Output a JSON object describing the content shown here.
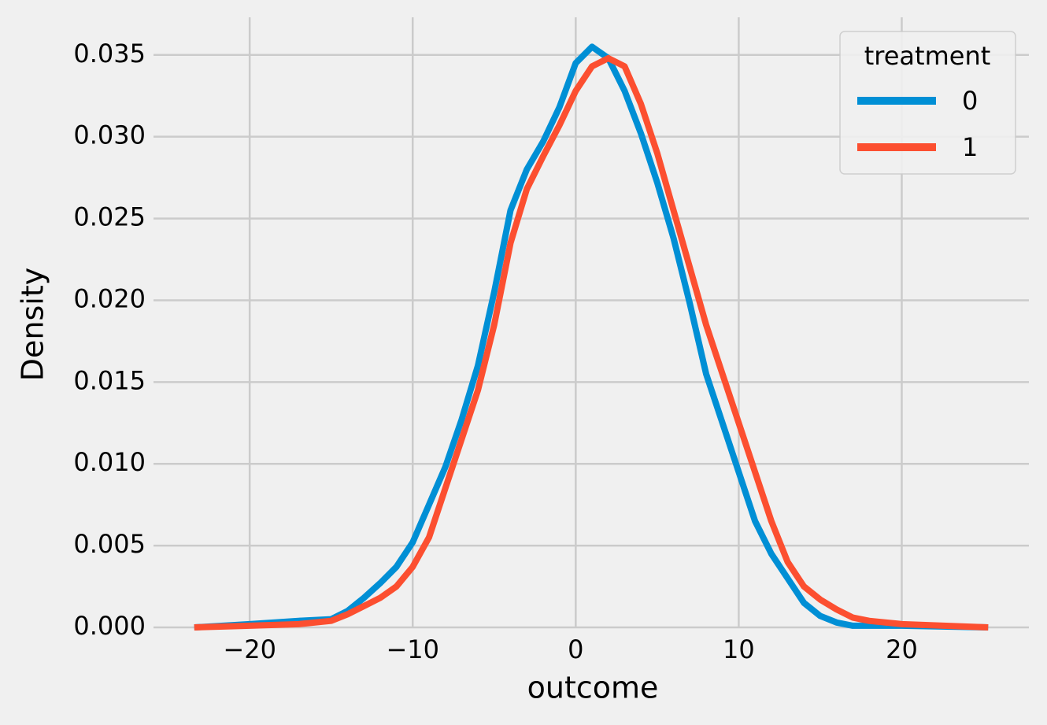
{
  "chart_data": {
    "type": "line",
    "xlabel": "outcome",
    "ylabel": "Density",
    "x": [
      -23.4,
      -20,
      -17,
      -15,
      -14,
      -13,
      -12,
      -11,
      -10,
      -9,
      -8,
      -7,
      -6,
      -5,
      -4,
      -3,
      -2,
      -1,
      0,
      1,
      2,
      3,
      4,
      5,
      6,
      7,
      8,
      9,
      10,
      11,
      12,
      13,
      14,
      15,
      16,
      17,
      18,
      20,
      25.3
    ],
    "series": [
      {
        "name": "0",
        "color": "#008fd5",
        "values": [
          0,
          0.0002,
          0.0004,
          0.0005,
          0.001,
          0.0018,
          0.0027,
          0.0037,
          0.0052,
          0.0075,
          0.0098,
          0.0127,
          0.016,
          0.0205,
          0.0255,
          0.028,
          0.0297,
          0.0318,
          0.0345,
          0.0355,
          0.0348,
          0.0328,
          0.0302,
          0.0272,
          0.0238,
          0.0198,
          0.0155,
          0.0125,
          0.0095,
          0.0065,
          0.0045,
          0.003,
          0.0015,
          0.0007,
          0.0003,
          0.0001,
          0.0001,
          0.0001,
          0
        ]
      },
      {
        "name": "1",
        "color": "#fc4f30",
        "values": [
          0,
          0.0001,
          0.0002,
          0.0004,
          0.0008,
          0.0013,
          0.0018,
          0.0025,
          0.0037,
          0.0055,
          0.0085,
          0.0115,
          0.0145,
          0.0185,
          0.0235,
          0.0268,
          0.0288,
          0.0307,
          0.0328,
          0.0343,
          0.0348,
          0.0343,
          0.032,
          0.029,
          0.0255,
          0.022,
          0.0185,
          0.0155,
          0.0125,
          0.0095,
          0.0065,
          0.004,
          0.0025,
          0.0017,
          0.0011,
          0.0006,
          0.0004,
          0.0002,
          0
        ]
      }
    ],
    "xlim": [
      -25.9,
      27.8
    ],
    "ylim": [
      0,
      0.0373
    ],
    "xticks": [
      {
        "value": -20,
        "label": "−20"
      },
      {
        "value": -10,
        "label": "−10"
      },
      0,
      10,
      20
    ],
    "yticks": [
      {
        "value": 0,
        "label": "0.000"
      },
      {
        "value": 0.005,
        "label": "0.005"
      },
      {
        "value": 0.01,
        "label": "0.010"
      },
      {
        "value": 0.015,
        "label": "0.015"
      },
      {
        "value": 0.02,
        "label": "0.020"
      },
      {
        "value": 0.025,
        "label": "0.025"
      },
      {
        "value": 0.03,
        "label": "0.030"
      },
      {
        "value": 0.035,
        "label": "0.035"
      }
    ],
    "grid": true,
    "legend": {
      "title": "treatment",
      "position": "upper right"
    }
  }
}
